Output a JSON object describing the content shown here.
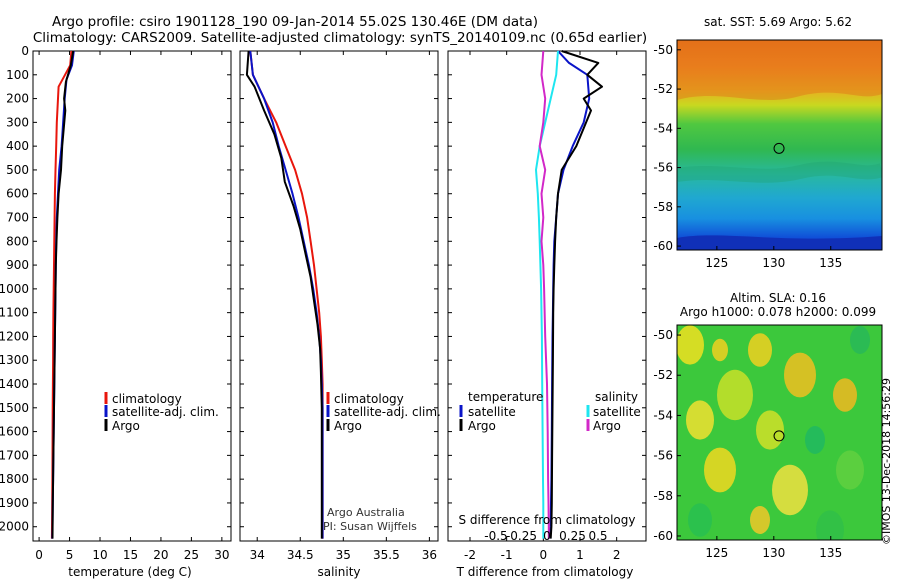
{
  "title": {
    "line1": "Argo profile: csiro 1901128_190 09-Jan-2014 55.02S 130.46E (DM data)",
    "line2": "Climatology: CARS2009. Satellite-adjusted climatology: synTS_20140109.nc (0.65d earlier)"
  },
  "colors": {
    "climatology": "#e8160c",
    "satellite": "#0a14c8",
    "argo": "#000000",
    "sat_salinity": "#1ee6f0",
    "argo_salinity": "#d228c8"
  },
  "credit": {
    "line1": "Argo Australia",
    "line2": "PI: Susan Wijffels"
  },
  "timestamp": "©IMOS 13-Dec-2018 14:56:29",
  "legend_panel1": [
    "climatology",
    "satellite-adj. clim.",
    "Argo"
  ],
  "legend_panel3": {
    "temp_head": "temperature",
    "sal_head": "salinity",
    "temp_items": [
      "satellite",
      "Argo"
    ],
    "sal_items": [
      "satellite",
      "Argo"
    ]
  },
  "map_sst": {
    "title": "sat. SST: 5.69 Argo: 5.62",
    "xticks": [
      "125",
      "130",
      "135"
    ],
    "yticks": [
      "-50",
      "-52",
      "-54",
      "-56",
      "-58",
      "-60"
    ],
    "xlim": [
      121.5,
      139.5
    ],
    "ylim": [
      -60.2,
      -49.5
    ],
    "marker": [
      130.46,
      -55.02
    ]
  },
  "map_sla": {
    "title1": "Altim. SLA: 0.16",
    "title2": "Argo h1000: 0.078 h2000: 0.099",
    "xticks": [
      "125",
      "130",
      "135"
    ],
    "yticks": [
      "-50",
      "-52",
      "-54",
      "-56",
      "-58",
      "-60"
    ],
    "xlim": [
      121.5,
      139.5
    ],
    "ylim": [
      -60.2,
      -49.5
    ],
    "marker": [
      130.46,
      -55.02
    ]
  },
  "chart_data": [
    {
      "type": "line",
      "xlabel": "temperature (deg C)",
      "xlim": [
        -1,
        31.5
      ],
      "ylim": [
        2060,
        0
      ],
      "xticks": [
        0,
        5,
        10,
        15,
        20,
        25,
        30
      ],
      "yticks": [
        0,
        100,
        200,
        300,
        400,
        500,
        600,
        700,
        800,
        900,
        1000,
        1100,
        1200,
        1300,
        1400,
        1500,
        1600,
        1700,
        1800,
        1900,
        2000
      ],
      "series": [
        {
          "name": "climatology",
          "color": "#e8160c",
          "x": [
            5.3,
            5.1,
            3.2,
            2.9,
            2.8,
            2.7,
            2.6,
            2.55,
            2.5,
            2.45,
            2.4,
            2.35,
            2.32,
            2.3,
            2.27,
            2.24,
            2.22,
            2.2,
            2.18,
            2.15,
            2.12,
            2.1
          ],
          "y": [
            0,
            60,
            150,
            300,
            400,
            500,
            600,
            700,
            800,
            900,
            1000,
            1100,
            1200,
            1300,
            1400,
            1500,
            1600,
            1700,
            1800,
            1900,
            2000,
            2050
          ]
        },
        {
          "name": "satellite-adj. clim.",
          "color": "#0a14c8",
          "x": [
            5.7,
            5.4,
            4.5,
            4.2,
            3.7,
            3.3,
            3.1,
            2.9,
            2.8,
            2.75,
            2.7,
            2.65,
            2.6,
            2.55,
            2.5,
            2.45,
            2.4,
            2.35,
            2.3,
            2.25,
            2.2,
            2.15
          ],
          "y": [
            0,
            60,
            120,
            200,
            400,
            500,
            600,
            700,
            800,
            900,
            1000,
            1100,
            1200,
            1300,
            1400,
            1500,
            1600,
            1700,
            1800,
            1900,
            2000,
            2050
          ]
        },
        {
          "name": "Argo",
          "color": "#000000",
          "x": [
            5.6,
            5.2,
            4.4,
            4.1,
            4.3,
            3.8,
            3.6,
            3.2,
            3.0,
            2.85,
            2.75,
            2.7,
            2.65,
            2.6,
            2.55,
            2.5,
            2.45,
            2.4,
            2.35,
            2.3,
            2.25,
            2.2
          ],
          "y": [
            0,
            60,
            130,
            200,
            250,
            400,
            500,
            600,
            700,
            800,
            900,
            1000,
            1100,
            1200,
            1300,
            1400,
            1500,
            1600,
            1700,
            1800,
            1900,
            2050
          ]
        }
      ]
    },
    {
      "type": "line",
      "xlabel": "salinity",
      "xlim": [
        33.8,
        36.1
      ],
      "ylim": [
        2060,
        0
      ],
      "xticks": [
        34,
        34.5,
        35,
        35.5,
        36
      ],
      "series": [
        {
          "name": "climatology",
          "color": "#e8160c",
          "x": [
            33.92,
            33.95,
            34.08,
            34.22,
            34.33,
            34.44,
            34.52,
            34.58,
            34.62,
            34.66,
            34.69,
            34.72,
            34.74,
            34.75,
            34.76,
            34.76,
            34.76,
            34.76,
            34.76
          ],
          "y": [
            0,
            100,
            200,
            300,
            400,
            500,
            600,
            700,
            800,
            900,
            1000,
            1100,
            1200,
            1300,
            1400,
            1500,
            1700,
            1900,
            2050
          ]
        },
        {
          "name": "satellite-adj. clim.",
          "color": "#0a14c8",
          "x": [
            33.92,
            33.95,
            34.08,
            34.18,
            34.25,
            34.33,
            34.41,
            34.48,
            34.54,
            34.6,
            34.65,
            34.69,
            34.72,
            34.74,
            34.75,
            34.76,
            34.76,
            34.76,
            34.76
          ],
          "y": [
            0,
            100,
            200,
            300,
            400,
            500,
            600,
            700,
            800,
            900,
            1000,
            1100,
            1200,
            1300,
            1400,
            1500,
            1700,
            1900,
            2050
          ]
        },
        {
          "name": "Argo",
          "color": "#000000",
          "x": [
            33.9,
            33.88,
            33.97,
            34.08,
            34.2,
            34.28,
            34.32,
            34.42,
            34.5,
            34.56,
            34.62,
            34.66,
            34.7,
            34.73,
            34.74,
            34.75,
            34.75,
            34.75
          ],
          "y": [
            0,
            100,
            150,
            250,
            350,
            450,
            550,
            650,
            750,
            850,
            950,
            1050,
            1150,
            1250,
            1350,
            1500,
            1800,
            2050
          ]
        }
      ]
    },
    {
      "type": "line",
      "xlabel": "T difference from climatology",
      "x2label": "S difference from climatology",
      "xlim": [
        -2.6,
        2.8
      ],
      "ylim": [
        2060,
        0
      ],
      "xticks": [
        -2,
        -1,
        0,
        1,
        2
      ],
      "x2ticks": [
        "-0.5",
        "-0.25",
        "0",
        "0.25",
        "0.5"
      ],
      "series": [
        {
          "name": "temperature satellite",
          "color": "#0a14c8",
          "x": [
            0.4,
            0.7,
            1.2,
            1.25,
            1.1,
            0.8,
            0.55,
            0.4,
            0.35,
            0.3,
            0.28,
            0.27,
            0.26,
            0.25,
            0.24,
            0.23,
            0.22,
            0.21,
            0.2,
            0.18
          ],
          "y": [
            0,
            50,
            100,
            200,
            300,
            400,
            500,
            600,
            700,
            800,
            900,
            1000,
            1100,
            1200,
            1400,
            1600,
            1800,
            1900,
            2000,
            2050
          ]
        },
        {
          "name": "temperature Argo",
          "color": "#000000",
          "x": [
            0.5,
            1.5,
            1.2,
            1.6,
            1.1,
            1.3,
            0.9,
            0.5,
            0.4,
            0.35,
            0.32,
            0.3,
            0.28,
            0.27,
            0.26,
            0.25,
            0.24,
            0.23,
            0.22,
            0.2
          ],
          "y": [
            0,
            50,
            100,
            150,
            200,
            250,
            400,
            500,
            600,
            700,
            800,
            900,
            1000,
            1100,
            1300,
            1500,
            1700,
            1900,
            2000,
            2050
          ]
        },
        {
          "name": "salinity satellite",
          "color": "#1ee6f0",
          "x": [
            0.4,
            0.35,
            0.2,
            0.05,
            -0.1,
            -0.2,
            -0.15,
            -0.12,
            -0.1,
            -0.08,
            -0.06,
            -0.04,
            -0.03,
            -0.02,
            -0.01,
            0.0,
            0.0,
            0.0
          ],
          "y": [
            0,
            100,
            200,
            300,
            400,
            500,
            600,
            700,
            800,
            900,
            1000,
            1200,
            1400,
            1600,
            1800,
            1900,
            2000,
            2050
          ]
        },
        {
          "name": "salinity Argo",
          "color": "#d228c8",
          "x": [
            0.0,
            -0.05,
            0.05,
            0.0,
            -0.1,
            0.05,
            -0.05,
            0.0,
            -0.05,
            0.0,
            0.02,
            0.05,
            0.1,
            0.12,
            0.13,
            0.14,
            0.15,
            0.15
          ],
          "y": [
            0,
            100,
            200,
            300,
            400,
            500,
            600,
            700,
            800,
            900,
            1000,
            1200,
            1400,
            1600,
            1800,
            1900,
            2000,
            2050
          ]
        }
      ]
    }
  ]
}
